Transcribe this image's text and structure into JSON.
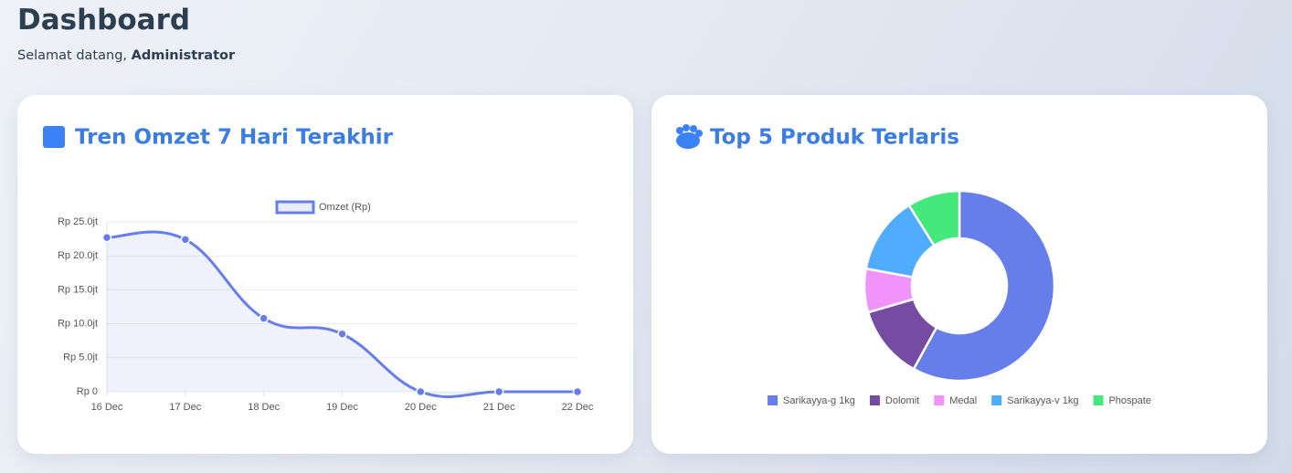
{
  "header": {
    "title": "Dashboard",
    "greeting": "Selamat datang,",
    "user": "Administrator"
  },
  "chart_data": [
    {
      "type": "line",
      "title": "Tren Omzet 7 Hari Terakhir",
      "categories": [
        "16 Dec",
        "17 Dec",
        "18 Dec",
        "19 Dec",
        "20 Dec",
        "21 Dec",
        "22 Dec"
      ],
      "series": [
        {
          "name": "Omzet (Rp)",
          "color": "#667eea",
          "values": [
            22.7,
            22.4,
            10.8,
            8.5,
            0,
            0,
            0
          ]
        }
      ],
      "ylim": [
        0,
        25
      ],
      "yticks": [
        {
          "value": 0,
          "label": "Rp 0"
        },
        {
          "value": 5,
          "label": "Rp 5.0jt"
        },
        {
          "value": 10,
          "label": "Rp 10.0jt"
        },
        {
          "value": 15,
          "label": "Rp 15.0jt"
        },
        {
          "value": 20,
          "label": "Rp 20.0jt"
        },
        {
          "value": 25,
          "label": "Rp 25.0jt"
        }
      ],
      "grid": true,
      "legend": "top"
    },
    {
      "type": "doughnut",
      "title": "Top 5 Produk Terlaris",
      "categories": [
        "Sarikayya-g 1kg",
        "Dolomit",
        "Medal",
        "Sarikayya-v 1kg",
        "Phospate"
      ],
      "values": [
        58,
        12.5,
        7.4,
        13.2,
        8.9
      ],
      "colors": [
        "#667eea",
        "#764ba2",
        "#f093fb",
        "#4facfe",
        "#43e97b"
      ],
      "legend": "bottom"
    }
  ]
}
